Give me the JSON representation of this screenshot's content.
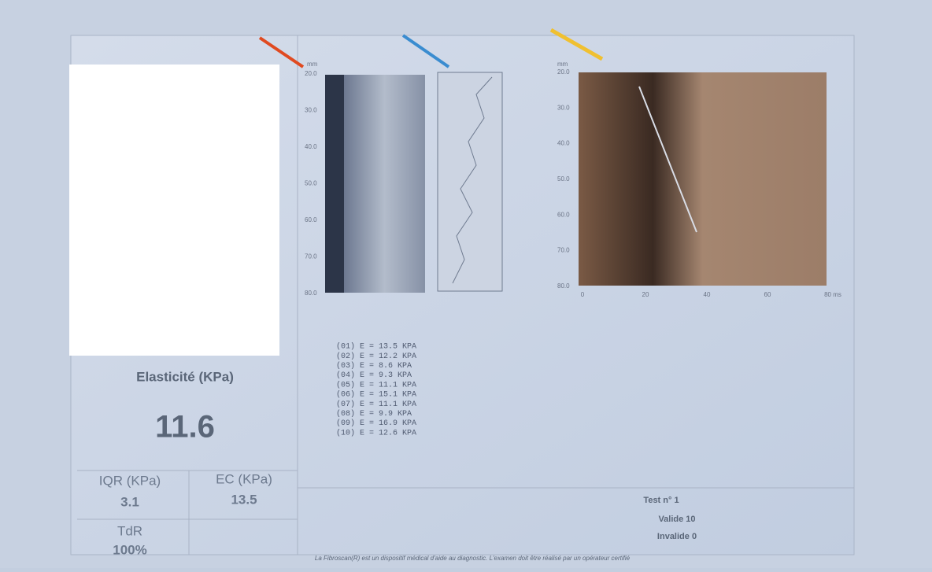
{
  "left_panel": {
    "title": "Elasticité (KPa)",
    "value": "11.6",
    "stats": [
      {
        "label": "IQR (KPa)",
        "value": "3.1"
      },
      {
        "label": "EC (KPa)",
        "value": "13.5"
      },
      {
        "label": "TdR",
        "value": "100%"
      }
    ]
  },
  "mmode_axis": {
    "unit": "mm",
    "ticks": [
      "20.0",
      "30.0",
      "40.0",
      "50.0",
      "60.0",
      "70.0",
      "80.0"
    ]
  },
  "elastogram_axis": {
    "unit": "mm",
    "yticks": [
      "20.0",
      "30.0",
      "40.0",
      "50.0",
      "60.0",
      "70.0",
      "80.0"
    ],
    "xticks": [
      "0",
      "20",
      "40",
      "60",
      "80 ms"
    ]
  },
  "measurements": [
    "(01) E = 13.5 KPA",
    "(02) E = 12.2 KPA",
    "(03) E = 8.6 KPA",
    "(04) E = 9.3 KPA",
    "(05) E = 11.1 KPA",
    "(06) E = 15.1 KPA",
    "(07) E = 11.1 KPA",
    "(08) E = 9.9 KPA",
    "(09) E = 16.9 KPA",
    "(10) E = 12.6 KPA"
  ],
  "test_info": {
    "test": "Test n° 1",
    "valid": "Valide 10",
    "invalid": "Invalide 0"
  },
  "footer": "La Fibroscan(R) est un dispositif médical d'aide au diagnostic. L'examen doit être réalisé par un opérateur certifié"
}
